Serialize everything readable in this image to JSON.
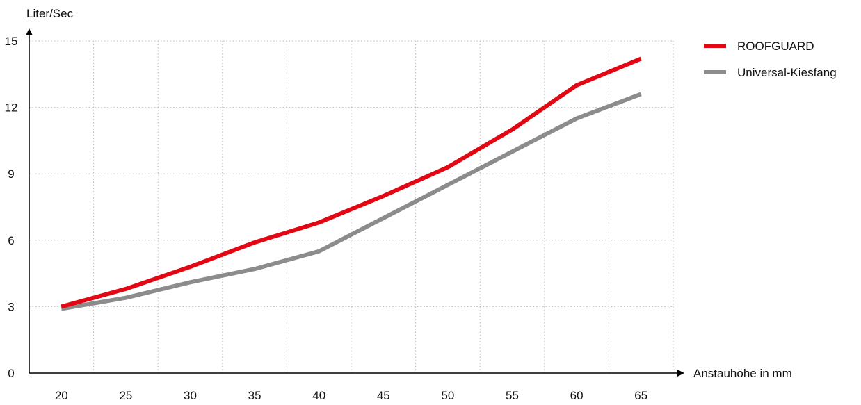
{
  "chart_data": {
    "type": "line",
    "x": [
      20,
      25,
      30,
      35,
      40,
      45,
      50,
      55,
      60,
      65
    ],
    "series": [
      {
        "name": "ROOFGUARD",
        "color": "#e30613",
        "values": [
          3.0,
          3.8,
          4.8,
          5.9,
          6.8,
          8.0,
          9.3,
          11.0,
          13.0,
          14.2
        ]
      },
      {
        "name": "Universal-Kiesfang",
        "color": "#8c8c8c",
        "values": [
          2.9,
          3.4,
          4.1,
          4.7,
          5.5,
          7.0,
          8.5,
          10.0,
          11.5,
          12.6
        ]
      }
    ],
    "xlabel": "Anstauhöhe in mm",
    "ylabel": "Liter/Sec",
    "xlim": [
      17.5,
      67.5
    ],
    "ylim": [
      0,
      15
    ],
    "x_ticks": [
      20,
      25,
      30,
      35,
      40,
      45,
      50,
      55,
      60,
      65
    ],
    "y_ticks": [
      0,
      3,
      6,
      9,
      12,
      15
    ],
    "grid": true,
    "legend_position": "top-right"
  }
}
